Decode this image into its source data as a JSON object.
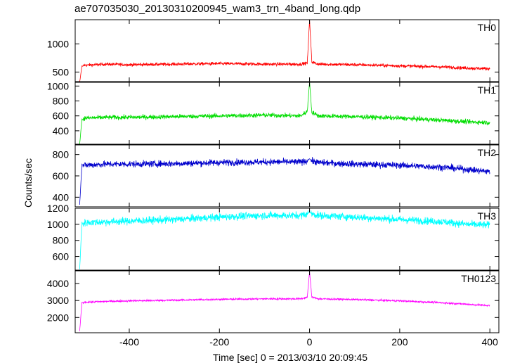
{
  "chart_data": {
    "type": "line",
    "title": "ae707035030_20130310200945_wam3_trn_4band_long.qdp",
    "xlabel": "Time [sec] 0 = 2013/03/10 20:09:45",
    "ylabel": "Counts/sec",
    "xlim": [
      -520,
      420
    ],
    "xticks": [
      -400,
      -200,
      0,
      200,
      400
    ],
    "grid": false,
    "panels": [
      {
        "name": "TH0",
        "color": "#ff0000",
        "ylim": [
          330,
          1430
        ],
        "yticks": [
          500,
          1000
        ],
        "x": [
          -510,
          -505,
          -503,
          -500,
          -450,
          -400,
          -300,
          -200,
          -100,
          -20,
          -5,
          0,
          5,
          20,
          100,
          200,
          300,
          350,
          400
        ],
        "y": [
          320,
          610,
          600,
          620,
          640,
          630,
          640,
          650,
          640,
          640,
          660,
          1430,
          680,
          640,
          630,
          610,
          590,
          570,
          560
        ],
        "noise": 28
      },
      {
        "name": "TH1",
        "color": "#00dd00",
        "ylim": [
          220,
          1050
        ],
        "yticks": [
          400,
          600,
          800,
          1000
        ],
        "x": [
          -510,
          -505,
          -503,
          -500,
          -450,
          -400,
          -300,
          -200,
          -100,
          -20,
          -5,
          0,
          5,
          20,
          100,
          200,
          300,
          350,
          400
        ],
        "y": [
          220,
          560,
          550,
          570,
          580,
          580,
          590,
          600,
          610,
          600,
          660,
          1060,
          650,
          600,
          590,
          570,
          540,
          520,
          510
        ],
        "noise": 30
      },
      {
        "name": "TH2",
        "color": "#0000cc",
        "ylim": [
          310,
          890
        ],
        "yticks": [
          400,
          600,
          800
        ],
        "x": [
          -510,
          -505,
          -503,
          -500,
          -450,
          -400,
          -300,
          -200,
          -100,
          -20,
          -5,
          0,
          5,
          20,
          100,
          200,
          300,
          350,
          400
        ],
        "y": [
          330,
          710,
          700,
          700,
          710,
          710,
          715,
          725,
          730,
          730,
          740,
          760,
          740,
          725,
          710,
          700,
          680,
          660,
          640
        ],
        "noise": 30
      },
      {
        "name": "TH3",
        "color": "#00ffff",
        "ylim": [
          430,
          1200
        ],
        "yticks": [
          600,
          800,
          1000,
          1200
        ],
        "x": [
          -510,
          -505,
          -503,
          -500,
          -450,
          -400,
          -300,
          -200,
          -100,
          -20,
          -5,
          0,
          5,
          20,
          100,
          200,
          300,
          350,
          400
        ],
        "y": [
          440,
          1030,
          1000,
          1020,
          1030,
          1040,
          1060,
          1090,
          1110,
          1110,
          1130,
          1150,
          1130,
          1110,
          1090,
          1060,
          1030,
          1000,
          990
        ],
        "noise": 45
      },
      {
        "name": "TH0123",
        "color": "#ff00ff",
        "ylim": [
          1100,
          4750
        ],
        "yticks": [
          2000,
          3000,
          4000
        ],
        "x": [
          -510,
          -505,
          -503,
          -500,
          -450,
          -400,
          -300,
          -200,
          -100,
          -20,
          -5,
          0,
          5,
          20,
          100,
          200,
          300,
          350,
          400
        ],
        "y": [
          1200,
          2900,
          2880,
          2900,
          2950,
          2980,
          3020,
          3070,
          3100,
          3100,
          3200,
          4700,
          3200,
          3100,
          3060,
          2980,
          2860,
          2780,
          2700
        ],
        "noise": 55
      }
    ]
  }
}
